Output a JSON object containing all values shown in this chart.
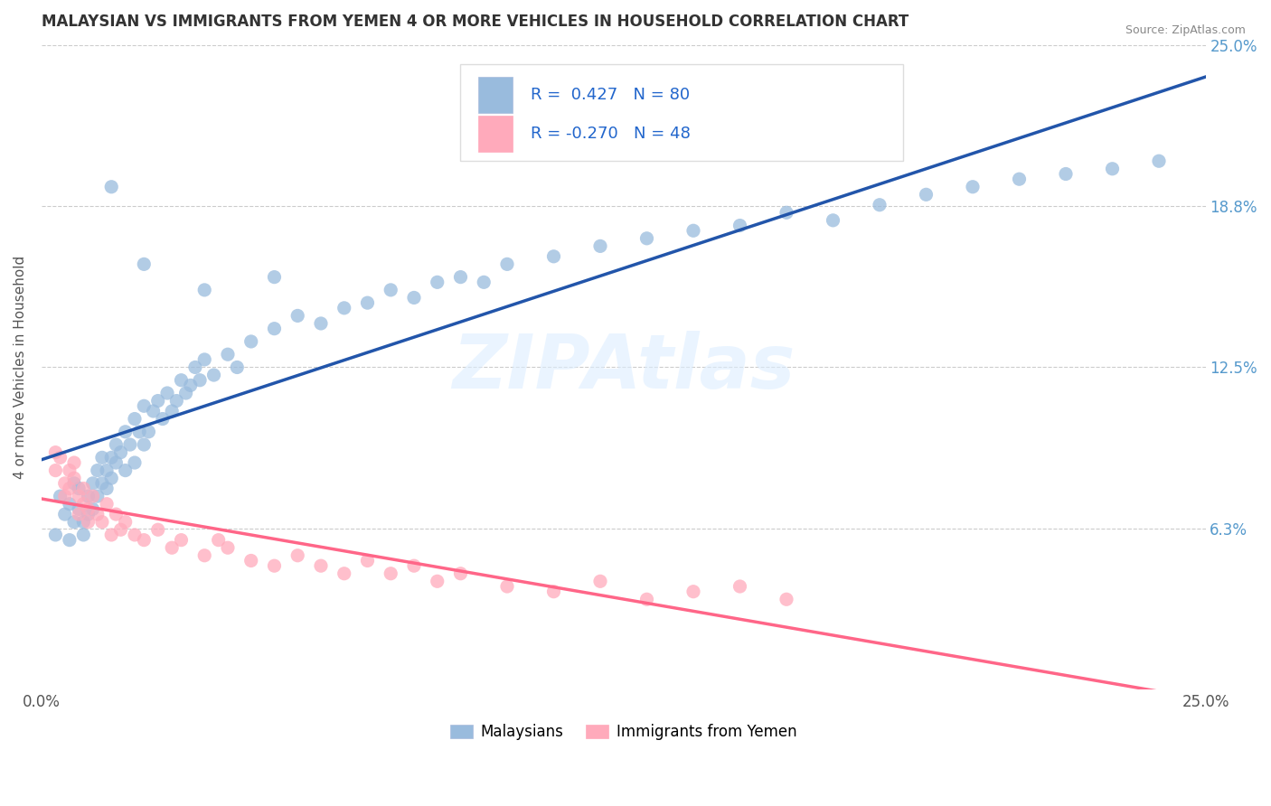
{
  "title": "MALAYSIAN VS IMMIGRANTS FROM YEMEN 4 OR MORE VEHICLES IN HOUSEHOLD CORRELATION CHART",
  "source": "Source: ZipAtlas.com",
  "ylabel": "4 or more Vehicles in Household",
  "legend_label1": "Malaysians",
  "legend_label2": "Immigrants from Yemen",
  "R1": 0.427,
  "N1": 80,
  "R2": -0.27,
  "N2": 48,
  "blue_color": "#99BBDD",
  "pink_color": "#FFAABB",
  "blue_line_color": "#2255AA",
  "pink_line_color": "#FF6688",
  "watermark": "ZIPAtlas",
  "blue_dots": [
    [
      0.003,
      0.06
    ],
    [
      0.004,
      0.075
    ],
    [
      0.005,
      0.068
    ],
    [
      0.006,
      0.058
    ],
    [
      0.006,
      0.072
    ],
    [
      0.007,
      0.065
    ],
    [
      0.007,
      0.08
    ],
    [
      0.008,
      0.07
    ],
    [
      0.008,
      0.078
    ],
    [
      0.009,
      0.065
    ],
    [
      0.009,
      0.06
    ],
    [
      0.01,
      0.075
    ],
    [
      0.01,
      0.068
    ],
    [
      0.011,
      0.08
    ],
    [
      0.011,
      0.07
    ],
    [
      0.012,
      0.085
    ],
    [
      0.012,
      0.075
    ],
    [
      0.013,
      0.08
    ],
    [
      0.013,
      0.09
    ],
    [
      0.014,
      0.085
    ],
    [
      0.014,
      0.078
    ],
    [
      0.015,
      0.09
    ],
    [
      0.015,
      0.082
    ],
    [
      0.016,
      0.095
    ],
    [
      0.016,
      0.088
    ],
    [
      0.017,
      0.092
    ],
    [
      0.018,
      0.1
    ],
    [
      0.018,
      0.085
    ],
    [
      0.019,
      0.095
    ],
    [
      0.02,
      0.105
    ],
    [
      0.02,
      0.088
    ],
    [
      0.021,
      0.1
    ],
    [
      0.022,
      0.095
    ],
    [
      0.022,
      0.11
    ],
    [
      0.023,
      0.1
    ],
    [
      0.024,
      0.108
    ],
    [
      0.025,
      0.112
    ],
    [
      0.026,
      0.105
    ],
    [
      0.027,
      0.115
    ],
    [
      0.028,
      0.108
    ],
    [
      0.029,
      0.112
    ],
    [
      0.03,
      0.12
    ],
    [
      0.031,
      0.115
    ],
    [
      0.032,
      0.118
    ],
    [
      0.033,
      0.125
    ],
    [
      0.034,
      0.12
    ],
    [
      0.035,
      0.128
    ],
    [
      0.037,
      0.122
    ],
    [
      0.04,
      0.13
    ],
    [
      0.042,
      0.125
    ],
    [
      0.045,
      0.135
    ],
    [
      0.05,
      0.14
    ],
    [
      0.055,
      0.145
    ],
    [
      0.06,
      0.142
    ],
    [
      0.065,
      0.148
    ],
    [
      0.07,
      0.15
    ],
    [
      0.075,
      0.155
    ],
    [
      0.08,
      0.152
    ],
    [
      0.085,
      0.158
    ],
    [
      0.09,
      0.16
    ],
    [
      0.095,
      0.158
    ],
    [
      0.1,
      0.165
    ],
    [
      0.11,
      0.168
    ],
    [
      0.12,
      0.172
    ],
    [
      0.13,
      0.175
    ],
    [
      0.14,
      0.178
    ],
    [
      0.15,
      0.18
    ],
    [
      0.16,
      0.185
    ],
    [
      0.17,
      0.182
    ],
    [
      0.18,
      0.188
    ],
    [
      0.19,
      0.192
    ],
    [
      0.2,
      0.195
    ],
    [
      0.21,
      0.198
    ],
    [
      0.22,
      0.2
    ],
    [
      0.23,
      0.202
    ],
    [
      0.24,
      0.205
    ],
    [
      0.015,
      0.195
    ],
    [
      0.022,
      0.165
    ],
    [
      0.035,
      0.155
    ],
    [
      0.05,
      0.16
    ]
  ],
  "pink_dots": [
    [
      0.003,
      0.085
    ],
    [
      0.004,
      0.09
    ],
    [
      0.005,
      0.08
    ],
    [
      0.005,
      0.075
    ],
    [
      0.006,
      0.085
    ],
    [
      0.006,
      0.078
    ],
    [
      0.007,
      0.082
    ],
    [
      0.007,
      0.088
    ],
    [
      0.008,
      0.075
    ],
    [
      0.008,
      0.068
    ],
    [
      0.009,
      0.078
    ],
    [
      0.009,
      0.072
    ],
    [
      0.01,
      0.07
    ],
    [
      0.01,
      0.065
    ],
    [
      0.011,
      0.075
    ],
    [
      0.012,
      0.068
    ],
    [
      0.013,
      0.065
    ],
    [
      0.014,
      0.072
    ],
    [
      0.015,
      0.06
    ],
    [
      0.016,
      0.068
    ],
    [
      0.017,
      0.062
    ],
    [
      0.018,
      0.065
    ],
    [
      0.02,
      0.06
    ],
    [
      0.022,
      0.058
    ],
    [
      0.025,
      0.062
    ],
    [
      0.028,
      0.055
    ],
    [
      0.03,
      0.058
    ],
    [
      0.035,
      0.052
    ],
    [
      0.038,
      0.058
    ],
    [
      0.04,
      0.055
    ],
    [
      0.045,
      0.05
    ],
    [
      0.05,
      0.048
    ],
    [
      0.055,
      0.052
    ],
    [
      0.06,
      0.048
    ],
    [
      0.065,
      0.045
    ],
    [
      0.07,
      0.05
    ],
    [
      0.075,
      0.045
    ],
    [
      0.08,
      0.048
    ],
    [
      0.085,
      0.042
    ],
    [
      0.09,
      0.045
    ],
    [
      0.1,
      0.04
    ],
    [
      0.11,
      0.038
    ],
    [
      0.12,
      0.042
    ],
    [
      0.13,
      0.035
    ],
    [
      0.14,
      0.038
    ],
    [
      0.15,
      0.04
    ],
    [
      0.16,
      0.035
    ],
    [
      0.003,
      0.092
    ]
  ],
  "xmin": 0.0,
  "xmax": 0.25,
  "ymin": 0.0,
  "ymax": 0.25,
  "yticks": [
    0.0,
    0.0625,
    0.125,
    0.1875,
    0.25
  ],
  "ytick_labels": [
    "",
    "6.3%",
    "12.5%",
    "18.8%",
    "25.0%"
  ]
}
